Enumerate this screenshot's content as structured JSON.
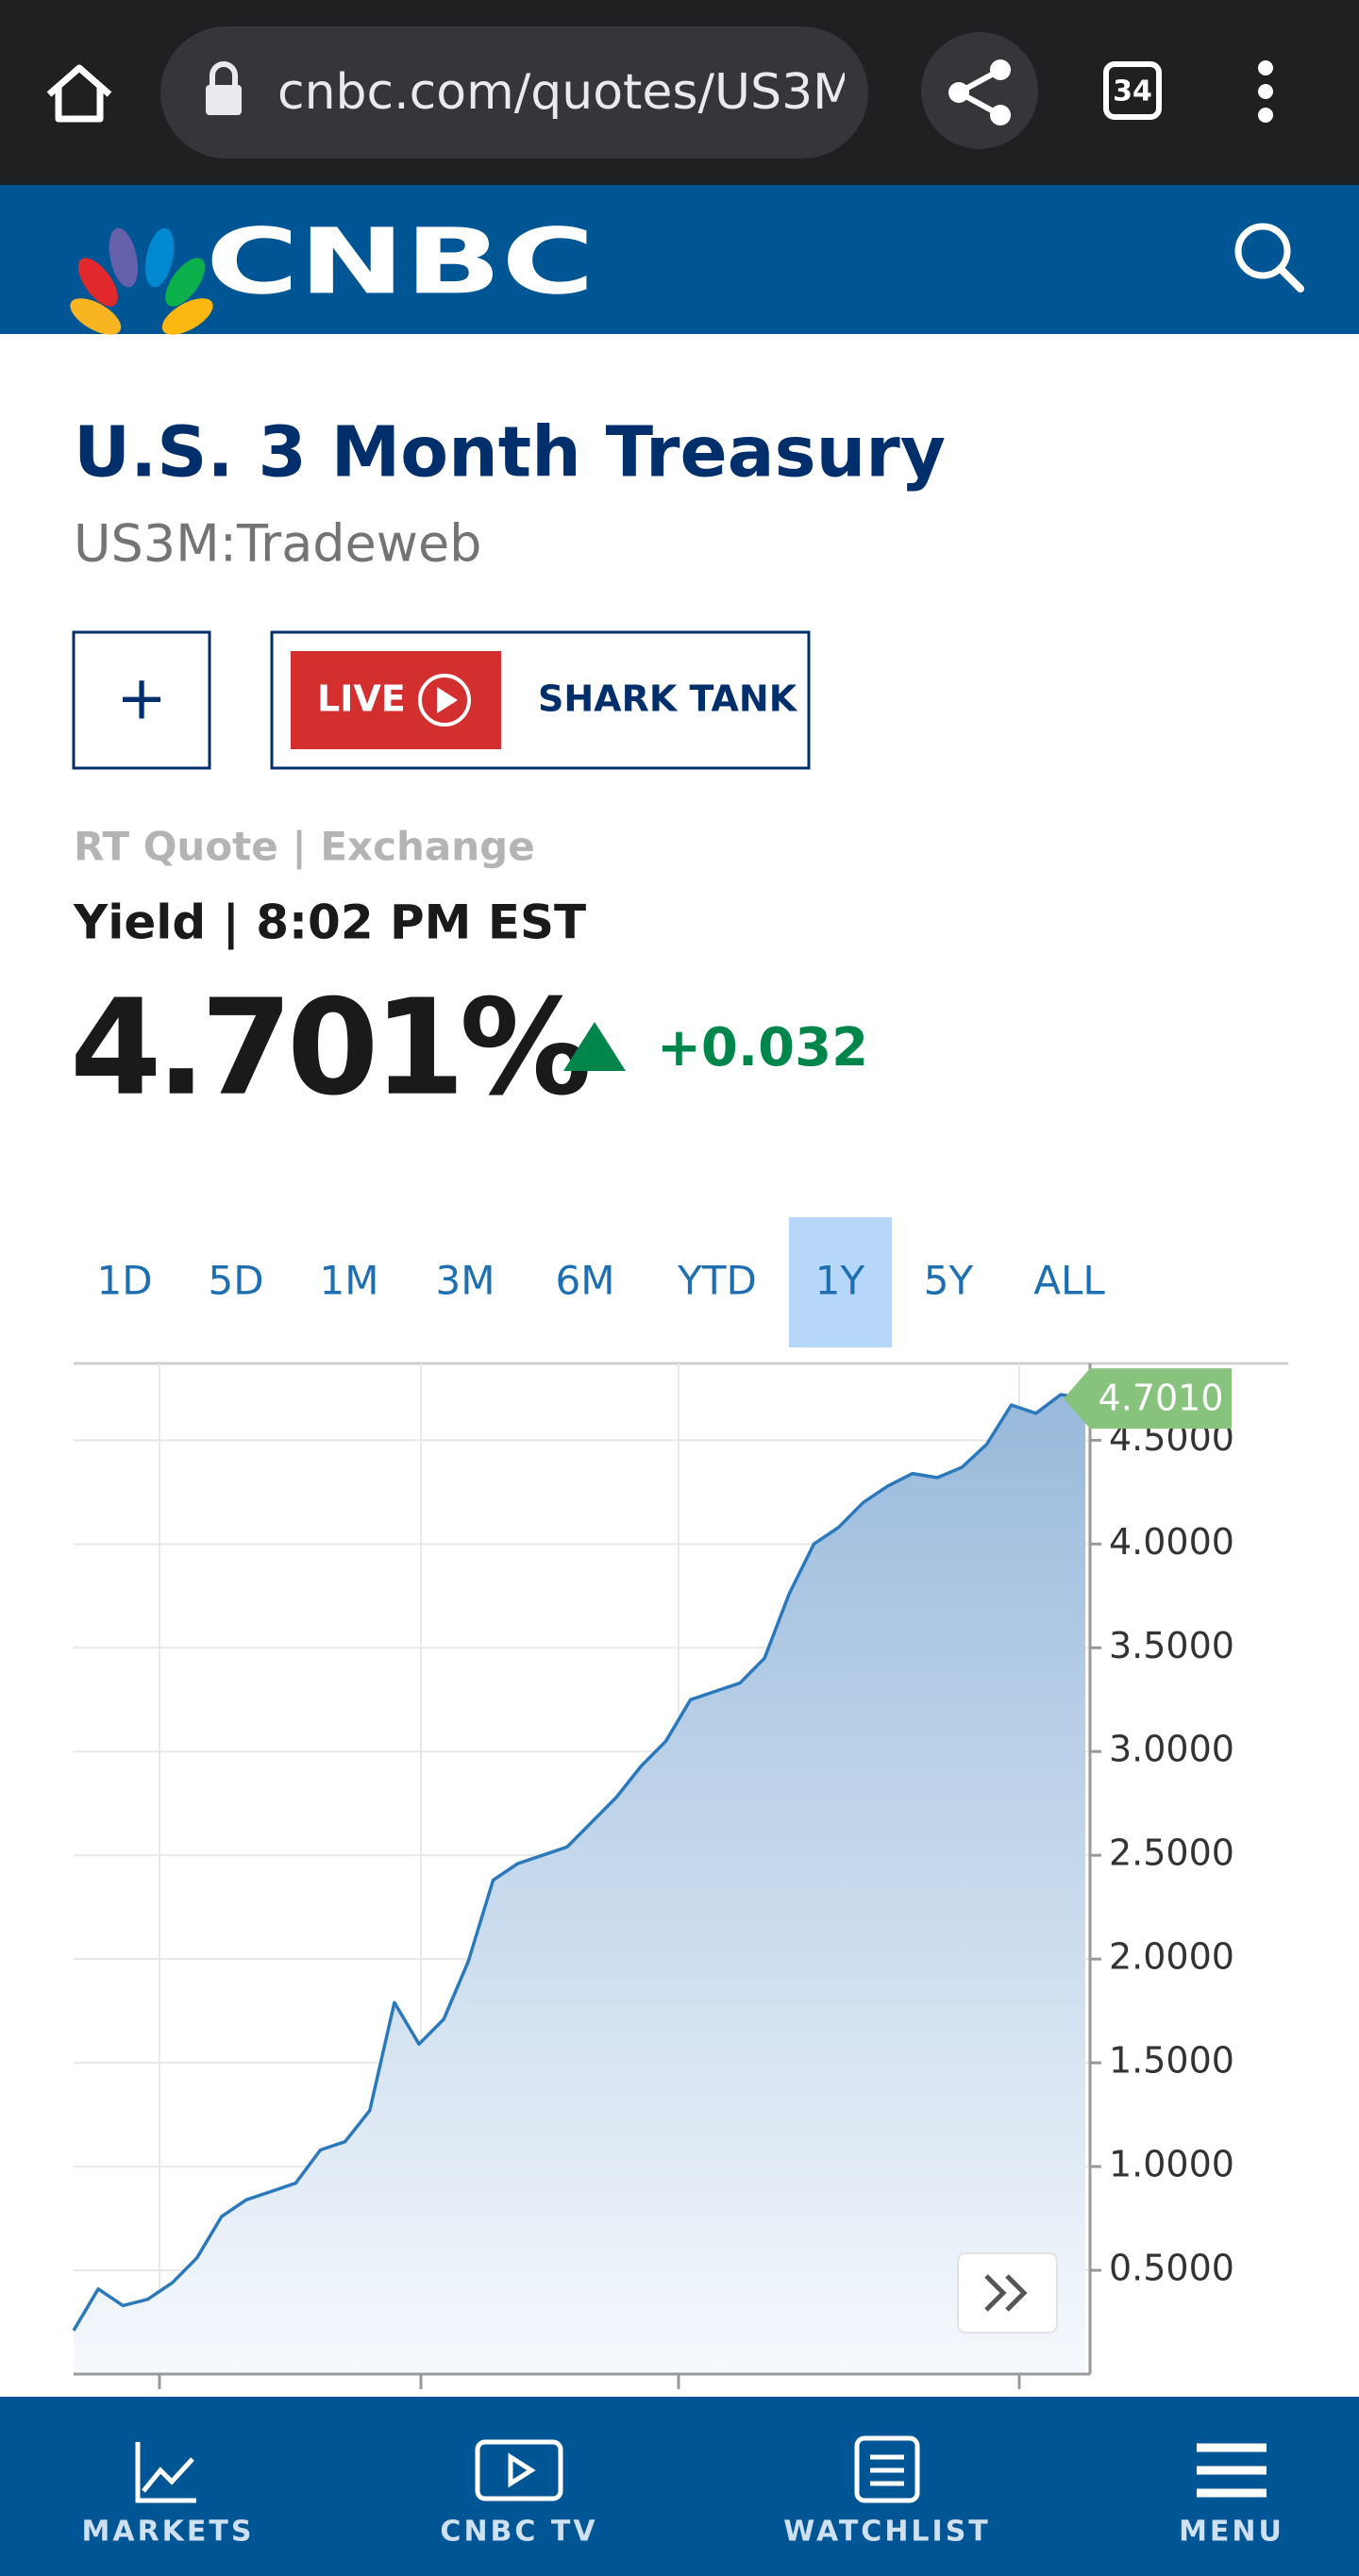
{
  "browser": {
    "url": "cnbc.com/quotes/US3M",
    "tab_count": "34"
  },
  "header": {
    "logo": "CNBC"
  },
  "quote": {
    "title": "U.S. 3 Month Treasury",
    "symbol": "US3M:Tradeweb",
    "add_button": "+",
    "live_label": "LIVE",
    "show": "SHARK TANK",
    "source": "RT Quote | Exchange",
    "timestamp": "Yield | 8:02 PM EST",
    "price": "4.701%",
    "change": "+0.032"
  },
  "range_tabs": {
    "items": [
      "1D",
      "5D",
      "1M",
      "3M",
      "6M",
      "YTD",
      "1Y",
      "5Y",
      "ALL"
    ],
    "selected": 6
  },
  "chart_data": {
    "type": "area",
    "color": "#2b78bb",
    "values": [
      0.21,
      0.41,
      0.33,
      0.36,
      0.44,
      0.56,
      0.76,
      0.84,
      0.88,
      0.92,
      1.08,
      1.12,
      1.27,
      1.79,
      1.59,
      1.71,
      1.99,
      2.38,
      2.46,
      2.5,
      2.54,
      2.66,
      2.78,
      2.93,
      3.05,
      3.25,
      3.29,
      3.33,
      3.45,
      3.76,
      4.0,
      4.08,
      4.2,
      4.28,
      4.34,
      4.32,
      4.37,
      4.48,
      4.67,
      4.63,
      4.72,
      4.701
    ],
    "ylim": [
      0,
      4.87
    ],
    "yticks": [
      {
        "value": 0.5,
        "label": "0.5000"
      },
      {
        "value": 1,
        "label": "1.0000"
      },
      {
        "value": 1.5,
        "label": "1.5000"
      },
      {
        "value": 2,
        "label": "2.0000"
      },
      {
        "value": 2.5,
        "label": "2.5000"
      },
      {
        "value": 3,
        "label": "3.0000"
      },
      {
        "value": 3.5,
        "label": "3.5000"
      },
      {
        "value": 4,
        "label": "4.0000"
      },
      {
        "value": 4.5,
        "label": "4.5000"
      }
    ],
    "grid": true,
    "current": {
      "value": 4.701,
      "label": "4.7010"
    }
  },
  "nav": {
    "items": [
      "MARKETS",
      "CNBC TV",
      "WATCHLIST",
      "MENU"
    ]
  }
}
